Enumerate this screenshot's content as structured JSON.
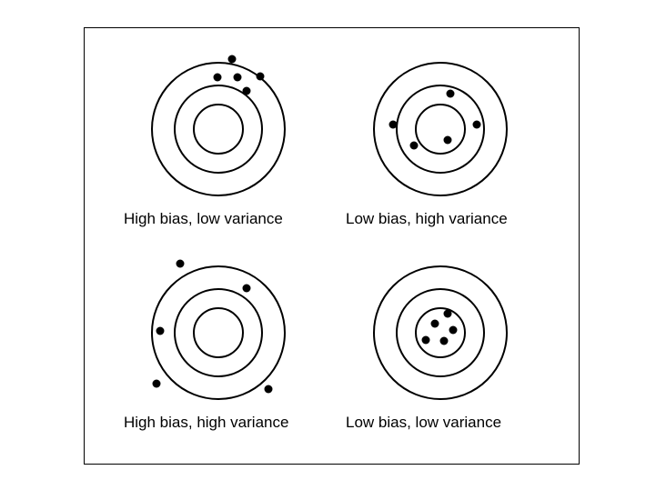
{
  "colors": {
    "ink": "#000000",
    "background": "#ffffff"
  },
  "panels": [
    {
      "caption": "High bias, low variance",
      "bias": "high",
      "variance": "low",
      "hit_count": 5
    },
    {
      "caption": "Low bias, high variance",
      "bias": "low",
      "variance": "high",
      "hit_count": 5
    },
    {
      "caption": "High bias, high variance",
      "bias": "high",
      "variance": "high",
      "hit_count": 5
    },
    {
      "caption": "Low bias, low variance",
      "bias": "low",
      "variance": "low",
      "hit_count": 5
    }
  ]
}
